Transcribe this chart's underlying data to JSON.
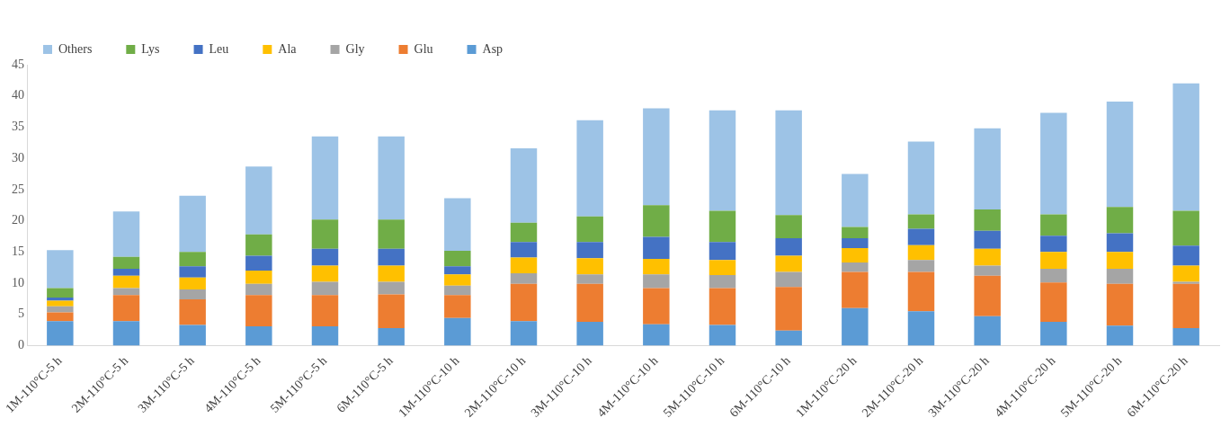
{
  "chart_data": {
    "type": "bar",
    "stacked": true,
    "legend": "top",
    "grid": false,
    "categories": [
      "1M-110°C-5 h",
      "2M-110°C-5 h",
      "3M-110°C-5 h",
      "4M-110°C-5 h",
      "5M-110°C-5 h",
      "6M-110°C-5 h",
      "1M-110°C-10 h",
      "2M-110°C-10 h",
      "3M-110°C-10 h",
      "4M-110°C-10 h",
      "5M-110°C-10 h",
      "6M-110°C-10 h",
      "1M-110°C-20 h",
      "2M-110°C-20 h",
      "3M-110°C-20 h",
      "4M-110°C-20 h",
      "5M-110°C-20 h",
      "6M-110°C-20 h"
    ],
    "ylim": [
      0,
      45
    ],
    "yticks": [
      0,
      5,
      10,
      15,
      20,
      25,
      30,
      35,
      40,
      45
    ],
    "series": [
      {
        "name": "Asp",
        "color": "#5b9bd5",
        "values": [
          3.9,
          3.9,
          3.3,
          3.1,
          3.1,
          2.8,
          4.4,
          3.9,
          3.8,
          3.4,
          3.3,
          2.4,
          6.0,
          5.5,
          4.7,
          3.8,
          3.2,
          2.8
        ]
      },
      {
        "name": "Glu",
        "color": "#ed7d31",
        "values": [
          1.4,
          4.2,
          4.1,
          5.0,
          5.0,
          5.4,
          3.7,
          6.0,
          6.1,
          5.8,
          5.9,
          7.0,
          5.8,
          6.3,
          6.5,
          6.3,
          6.7,
          7.1
        ]
      },
      {
        "name": "Gly",
        "color": "#a5a5a5",
        "values": [
          1.0,
          1.1,
          1.6,
          1.8,
          2.1,
          2.0,
          1.5,
          1.7,
          1.5,
          2.2,
          2.1,
          2.4,
          1.5,
          1.9,
          1.6,
          2.2,
          2.4,
          0.3
        ]
      },
      {
        "name": "Ala",
        "color": "#ffc000",
        "values": [
          0.9,
          2.0,
          1.9,
          2.1,
          2.6,
          2.6,
          1.8,
          2.5,
          2.6,
          2.5,
          2.4,
          2.6,
          2.3,
          2.4,
          2.7,
          2.7,
          2.7,
          2.6
        ]
      },
      {
        "name": "Leu",
        "color": "#4472c4",
        "values": [
          0.5,
          1.1,
          1.8,
          2.4,
          2.7,
          2.7,
          1.3,
          2.5,
          2.6,
          3.5,
          2.9,
          2.8,
          1.6,
          2.6,
          2.9,
          2.6,
          3.0,
          3.2
        ]
      },
      {
        "name": "Lys",
        "color": "#70ad47",
        "values": [
          1.5,
          1.9,
          2.3,
          3.4,
          4.7,
          4.7,
          2.5,
          3.1,
          4.1,
          5.1,
          5.0,
          3.7,
          1.8,
          2.3,
          3.4,
          3.4,
          4.2,
          5.6
        ]
      },
      {
        "name": "Others",
        "color": "#9dc3e6",
        "values": [
          6.1,
          7.3,
          9.0,
          10.9,
          13.3,
          13.3,
          8.4,
          11.9,
          15.4,
          15.5,
          16.1,
          16.8,
          8.5,
          11.7,
          13.0,
          16.3,
          16.9,
          20.4
        ]
      }
    ]
  }
}
